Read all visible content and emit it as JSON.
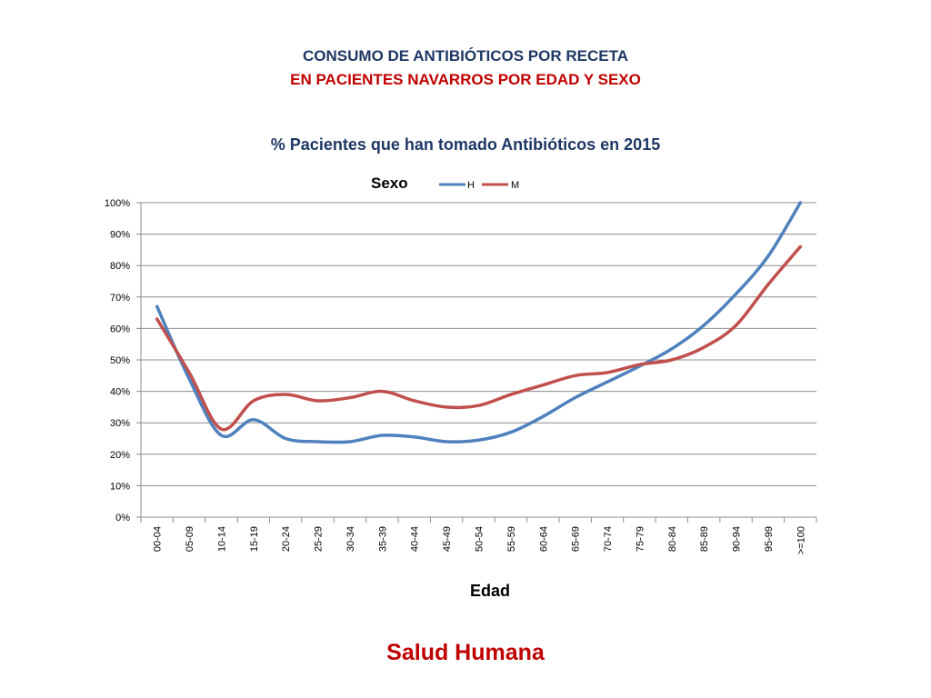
{
  "page": {
    "title_line1": "CONSUMO DE ANTIBIÓTICOS  POR RECETA",
    "title_line2": "EN PACIENTES NAVARROS POR EDAD Y SEXO",
    "footer": "Salud Humana"
  },
  "colors": {
    "title_line1": "#1F3864",
    "title_line2": "#C00000",
    "chart_title": "#1F3864",
    "footer": "#C00000",
    "series_H": "#4F81BD",
    "series_M": "#C0504D",
    "grid": "#8C8C8C"
  },
  "chart_data": {
    "type": "line",
    "title": "% Pacientes que han tomado Antibióticos en 2015",
    "xlabel": "Edad",
    "ylabel": "",
    "legend_title": "Sexo",
    "legend_position": "top",
    "grid": true,
    "ylim": [
      0,
      1
    ],
    "y_ticks": [
      "0%",
      "10%",
      "20%",
      "30%",
      "40%",
      "50%",
      "60%",
      "70%",
      "80%",
      "90%",
      "100%"
    ],
    "categories": [
      "00-04",
      "05-09",
      "10-14",
      "15-19",
      "20-24",
      "25-29",
      "30-34",
      "35-39",
      "40-44",
      "45-49",
      "50-54",
      "55-59",
      "60-64",
      "65-69",
      "70-74",
      "75-79",
      "80-84",
      "85-89",
      "90-94",
      "95-99",
      ">=100"
    ],
    "series": [
      {
        "name": "H",
        "values": [
          0.67,
          0.44,
          0.26,
          0.31,
          0.25,
          0.24,
          0.24,
          0.26,
          0.255,
          0.24,
          0.245,
          0.27,
          0.32,
          0.38,
          0.43,
          0.48,
          0.535,
          0.61,
          0.71,
          0.83,
          1.0
        ]
      },
      {
        "name": "M",
        "values": [
          0.63,
          0.46,
          0.28,
          0.37,
          0.39,
          0.37,
          0.38,
          0.4,
          0.37,
          0.35,
          0.355,
          0.39,
          0.42,
          0.45,
          0.46,
          0.485,
          0.5,
          0.54,
          0.61,
          0.74,
          0.86
        ]
      }
    ]
  }
}
